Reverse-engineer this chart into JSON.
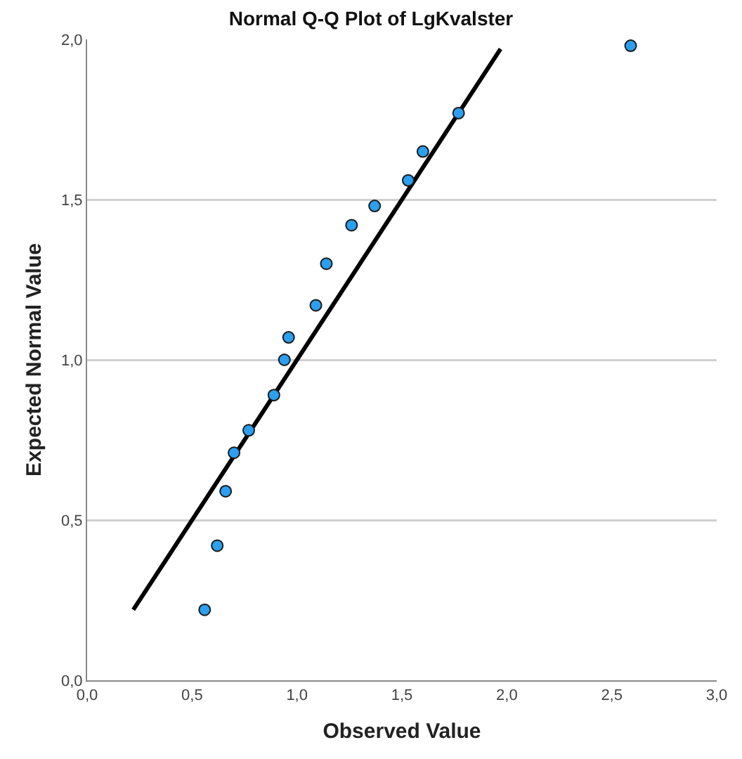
{
  "chart_data": {
    "type": "scatter",
    "title": "Normal Q-Q Plot of LgKvalster",
    "xlabel": "Observed Value",
    "ylabel": "Expected Normal Value",
    "xlim": [
      0,
      3
    ],
    "xticks": [
      {
        "value": 0,
        "label": "0,0"
      },
      {
        "value": 0.5,
        "label": "0,5"
      },
      {
        "value": 1,
        "label": "1,0"
      },
      {
        "value": 1.5,
        "label": "1,5"
      },
      {
        "value": 2,
        "label": "2,0"
      },
      {
        "value": 2.5,
        "label": "2,5"
      },
      {
        "value": 3,
        "label": "3,0"
      }
    ],
    "ylim": [
      0,
      2
    ],
    "yticks": [
      {
        "value": 0,
        "label": "0,0"
      },
      {
        "value": 0.5,
        "label": "0,5"
      },
      {
        "value": 1,
        "label": "1,0"
      },
      {
        "value": 1.5,
        "label": "1,5"
      },
      {
        "value": 2,
        "label": "2,0"
      }
    ],
    "grid": "y",
    "marker": "circle",
    "series": [
      {
        "color": "#2b9ff0",
        "x": [
          0.56,
          0.62,
          0.66,
          0.7,
          0.77,
          0.89,
          0.94,
          0.96,
          1.09,
          1.14,
          1.26,
          1.37,
          1.53,
          1.6,
          1.77,
          2.59
        ],
        "values": [
          0.22,
          0.42,
          0.59,
          0.71,
          0.78,
          0.89,
          1.0,
          1.07,
          1.17,
          1.3,
          1.42,
          1.48,
          1.56,
          1.65,
          1.77,
          1.98
        ]
      },
      {
        "type": "line",
        "color": "#000000",
        "line_style": "solid",
        "marker": "none",
        "x": [
          0.22,
          1.97
        ],
        "values": [
          0.22,
          1.97
        ]
      }
    ]
  }
}
